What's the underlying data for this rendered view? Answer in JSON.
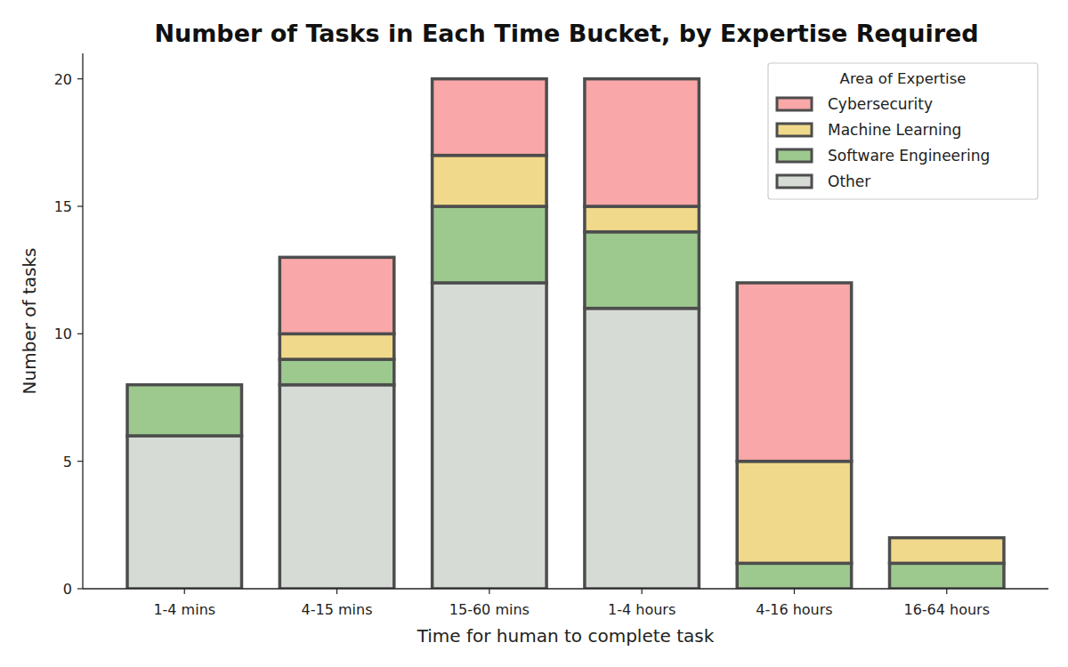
{
  "chart_data": {
    "type": "bar",
    "stacked": true,
    "title": "Number of Tasks in Each Time Bucket, by Expertise Required",
    "x_label": "Time for human to complete task",
    "y_label": "Number of tasks",
    "legend_title": "Area of Expertise",
    "legend": "upper right",
    "grid": false,
    "categories": [
      "1-4 mins",
      "4-15 mins",
      "15-60 mins",
      "1-4 hours",
      "4-16 hours",
      "16-64 hours"
    ],
    "series": [
      {
        "name": "Cybersecurity",
        "color": "#f9a7a8",
        "values": [
          0,
          3,
          3,
          5,
          7,
          0
        ]
      },
      {
        "name": "Machine Learning",
        "color": "#f0d98a",
        "values": [
          0,
          1,
          2,
          1,
          4,
          1
        ]
      },
      {
        "name": "Software Engineering",
        "color": "#9dc98f",
        "values": [
          2,
          1,
          3,
          3,
          1,
          1
        ]
      },
      {
        "name": "Other",
        "color": "#d7dbd6",
        "values": [
          6,
          8,
          12,
          11,
          0,
          0
        ]
      }
    ],
    "ylim": [
      0,
      21
    ],
    "yticks": [
      0,
      5,
      10,
      15,
      20
    ]
  }
}
